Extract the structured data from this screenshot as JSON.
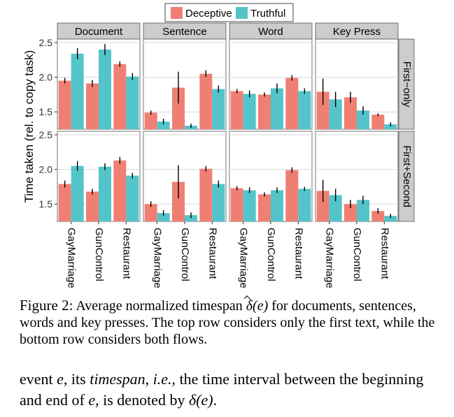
{
  "chart_data": {
    "type": "bar",
    "legend": {
      "placement": "top-center",
      "entries": [
        {
          "name": "Deceptive",
          "color": "#f07f73"
        },
        {
          "name": "Truthful",
          "color": "#53c4c9"
        }
      ]
    },
    "ylabel": "Time taken (rel. to copy task)",
    "ylim": [
      1.25,
      2.55
    ],
    "yticks": [
      1.5,
      2.0,
      2.5
    ],
    "ytick_labels": [
      "1.5",
      "2.0",
      "2.5"
    ],
    "grid": true,
    "columns": [
      "Document",
      "Sentence",
      "Word",
      "Key Press"
    ],
    "rows": [
      "First−only",
      "First+Second"
    ],
    "categories": [
      "GayMarriage",
      "GunControl",
      "Restaurant"
    ],
    "series": [
      "Deceptive",
      "Truthful"
    ],
    "panels": [
      {
        "row": 0,
        "col": 0,
        "values": [
          [
            1.95,
            2.34
          ],
          [
            1.91,
            2.4
          ],
          [
            2.19,
            2.01
          ]
        ],
        "errors": [
          [
            0.04,
            0.08
          ],
          [
            0.05,
            0.08
          ],
          [
            0.04,
            0.05
          ]
        ]
      },
      {
        "row": 0,
        "col": 1,
        "values": [
          [
            1.49,
            1.36
          ],
          [
            1.85,
            1.3
          ],
          [
            2.05,
            1.83
          ]
        ],
        "errors": [
          [
            0.03,
            0.04
          ],
          [
            0.23,
            0.03
          ],
          [
            0.05,
            0.05
          ]
        ]
      },
      {
        "row": 0,
        "col": 2,
        "values": [
          [
            1.8,
            1.76
          ],
          [
            1.75,
            1.84
          ],
          [
            1.99,
            1.8
          ]
        ],
        "errors": [
          [
            0.03,
            0.05
          ],
          [
            0.03,
            0.07
          ],
          [
            0.04,
            0.04
          ]
        ]
      },
      {
        "row": 0,
        "col": 3,
        "values": [
          [
            1.79,
            1.68
          ],
          [
            1.71,
            1.52
          ],
          [
            1.46,
            1.32
          ]
        ],
        "errors": [
          [
            0.19,
            0.11
          ],
          [
            0.08,
            0.06
          ],
          [
            0.02,
            0.03
          ]
        ]
      },
      {
        "row": 1,
        "col": 0,
        "values": [
          [
            1.79,
            2.05
          ],
          [
            1.68,
            2.04
          ],
          [
            2.13,
            1.91
          ]
        ],
        "errors": [
          [
            0.05,
            0.07
          ],
          [
            0.04,
            0.05
          ],
          [
            0.05,
            0.04
          ]
        ]
      },
      {
        "row": 1,
        "col": 1,
        "values": [
          [
            1.5,
            1.37
          ],
          [
            1.82,
            1.34
          ],
          [
            2.01,
            1.79
          ]
        ],
        "errors": [
          [
            0.04,
            0.04
          ],
          [
            0.24,
            0.04
          ],
          [
            0.04,
            0.05
          ]
        ]
      },
      {
        "row": 1,
        "col": 2,
        "values": [
          [
            1.73,
            1.7
          ],
          [
            1.64,
            1.7
          ],
          [
            1.99,
            1.72
          ]
        ],
        "errors": [
          [
            0.03,
            0.04
          ],
          [
            0.03,
            0.04
          ],
          [
            0.04,
            0.03
          ]
        ]
      },
      {
        "row": 1,
        "col": 3,
        "values": [
          [
            1.69,
            1.63
          ],
          [
            1.5,
            1.56
          ],
          [
            1.4,
            1.33
          ]
        ],
        "errors": [
          [
            0.16,
            0.09
          ],
          [
            0.06,
            0.06
          ],
          [
            0.04,
            0.03
          ]
        ]
      }
    ]
  },
  "caption": {
    "label": "Figure 2:",
    "text_before": " Average normalized timespan ",
    "symbol": "δ",
    "arg": "(e)",
    "text_after": " for documents, sentences, words and key presses. The top row considers only the first text, while the bottom row considers both flows."
  },
  "body_text": {
    "part1": "event ",
    "var1": "e",
    "part2": ", its ",
    "term1": "timespan",
    "part3": ", ",
    "term2": "i.e.,",
    "part4": " the time interval between the beginning and end of ",
    "var2": "e",
    "part5": ", is denoted by ",
    "symbol": "δ",
    "arg": "(e)",
    "part6": "."
  }
}
